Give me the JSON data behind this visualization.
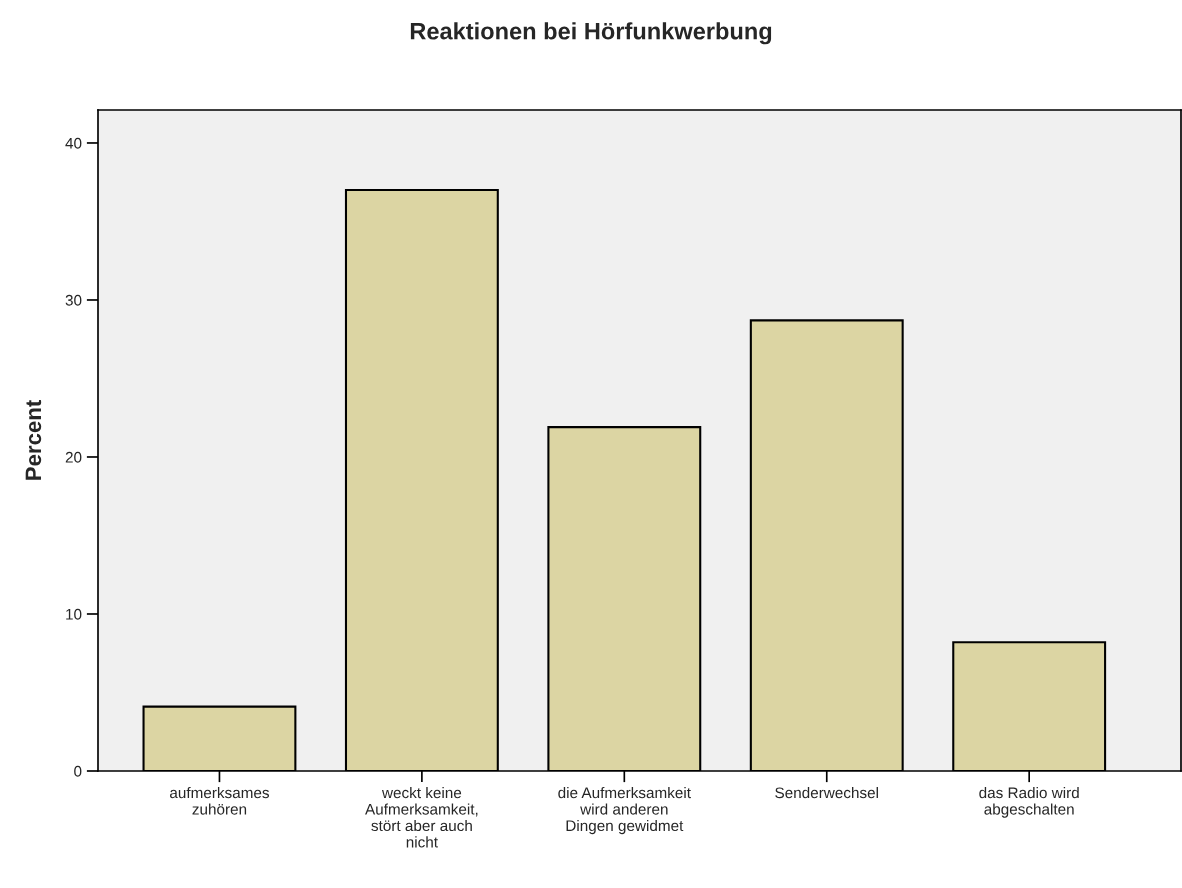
{
  "chart_data": {
    "type": "bar",
    "title": "Reaktionen bei Hörfunkwerbung",
    "ylabel": "Percent",
    "categories": [
      "aufmerksames\nzuhören",
      "weckt keine\nAufmerksamkeit,\nstört aber auch\nnicht",
      "die Aufmerksamkeit\nwird anderen\nDingen gewidmet",
      "Senderwechsel",
      "das Radio wird\nabgeschalten"
    ],
    "values": [
      4.1,
      37.0,
      21.9,
      28.7,
      8.2
    ],
    "color": "#dcd5a3",
    "ylim": [
      0,
      42.1
    ],
    "yticks": [
      0,
      10,
      20,
      30,
      40
    ],
    "grid": false,
    "legend": false
  }
}
